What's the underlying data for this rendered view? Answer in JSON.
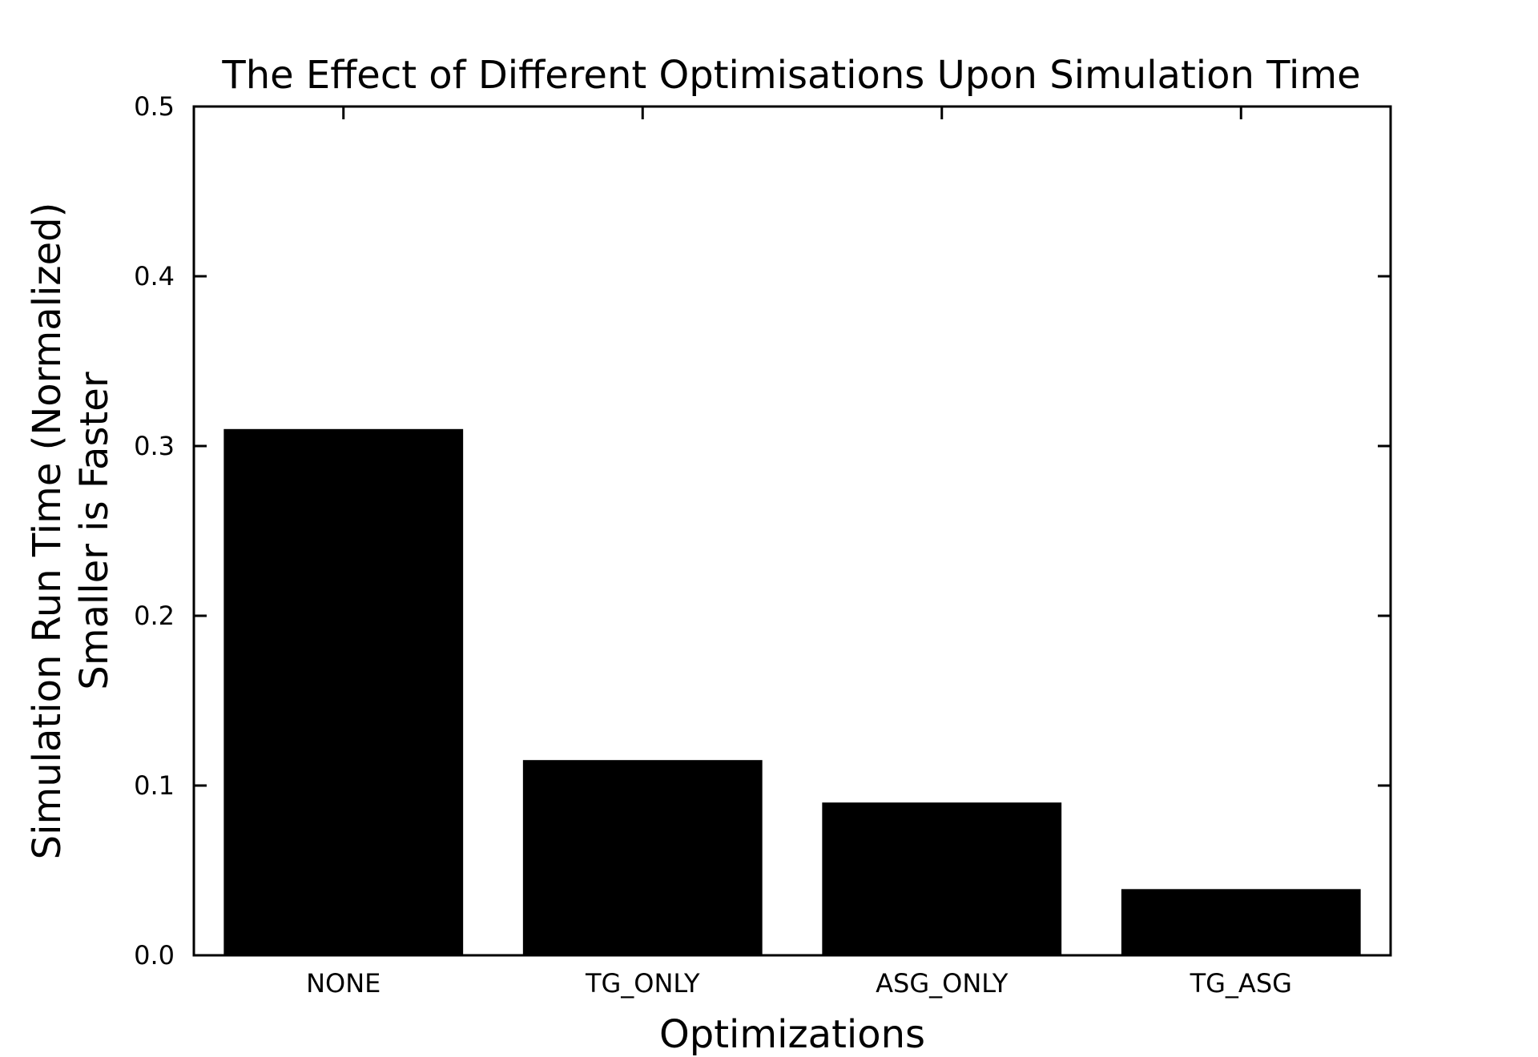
{
  "chart_data": {
    "type": "bar",
    "title": "The Effect of Different Optimisations Upon Simulation Time",
    "xlabel": "Optimizations",
    "ylabel_lines": [
      "Simulation Run Time (Normalized)",
      "Smaller is Faster"
    ],
    "categories": [
      "NONE",
      "TG_ONLY",
      "ASG_ONLY",
      "TG_ASG"
    ],
    "values": [
      0.31,
      0.115,
      0.09,
      0.039
    ],
    "ylim": [
      0,
      0.5
    ],
    "yticks": [
      "0.0",
      "0.1",
      "0.2",
      "0.3",
      "0.4",
      "0.5"
    ],
    "bar_color": "#000000",
    "grid": false,
    "legend": "none"
  }
}
